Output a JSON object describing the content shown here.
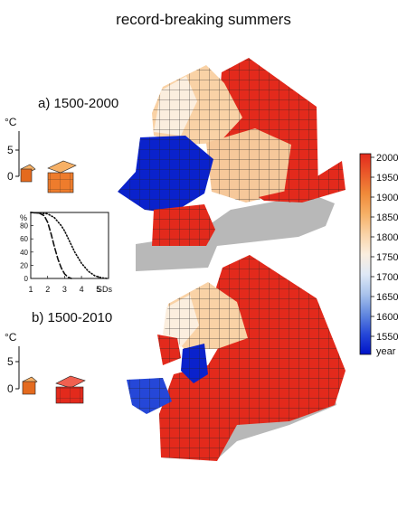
{
  "title": "record-breaking summers",
  "panels": [
    {
      "label": "a) 1500-2000"
    },
    {
      "label": "b) 1500-2010"
    }
  ],
  "temp_scale": {
    "unit": "°C",
    "ticks": [
      "0",
      "5"
    ]
  },
  "colorbar": {
    "ticks": [
      "2000",
      "1950",
      "1900",
      "1850",
      "1800",
      "1750",
      "1700",
      "1650",
      "1600",
      "1550"
    ],
    "label": "year",
    "colors": [
      "#e32a1c",
      "#ea5a2a",
      "#f08a3a",
      "#f6b066",
      "#f9d2a6",
      "#fbeede",
      "#dfe9f6",
      "#a9c3ec",
      "#6288df",
      "#2547d8",
      "#0013c8"
    ]
  },
  "chart_data": {
    "type": "line",
    "yunit": "%",
    "xunit": "SDs",
    "x_ticks": [
      "1",
      "2",
      "3",
      "4",
      "5"
    ],
    "y_ticks": [
      "0",
      "20",
      "40",
      "60",
      "80"
    ],
    "xlim": [
      1,
      5.6
    ],
    "ylim": [
      0,
      100
    ],
    "series": [
      {
        "style": "dashed",
        "x": [
          1.0,
          1.5,
          1.8,
          2.0,
          2.2,
          2.4,
          2.6,
          2.8,
          3.0,
          3.2,
          3.4
        ],
        "values": [
          100,
          99,
          95,
          85,
          68,
          48,
          30,
          16,
          7,
          2,
          0
        ]
      },
      {
        "style": "dotted",
        "x": [
          1.0,
          2.0,
          2.4,
          2.8,
          3.0,
          3.3,
          3.6,
          4.0,
          4.4,
          4.8,
          5.2,
          5.5
        ],
        "values": [
          100,
          98,
          92,
          80,
          72,
          56,
          40,
          23,
          11,
          4,
          1,
          0
        ]
      }
    ]
  }
}
